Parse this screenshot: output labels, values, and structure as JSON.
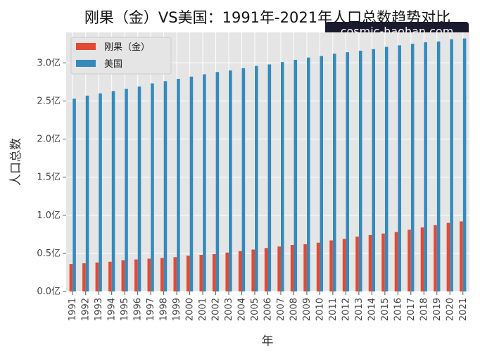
{
  "watermark": "cosmic-haohan.com",
  "colors": {
    "congo": "#E24A33",
    "usa": "#348ABD",
    "plot_bg": "#E5E5E5",
    "grid": "#FFFFFF",
    "watermark_bg": "#1a1a2e"
  },
  "chart_data": {
    "type": "bar",
    "title": "刚果（金）VS美国：1991年-2021年人口总数趋势对比",
    "xlabel": "年",
    "ylabel": "人口总数",
    "ylim": [
      0,
      3.4
    ],
    "yticks": [
      0.0,
      0.5,
      1.0,
      1.5,
      2.0,
      2.5,
      3.0
    ],
    "ytick_labels": [
      "0.0亿",
      "0.5亿",
      "1.0亿",
      "1.5亿",
      "2.0亿",
      "2.5亿",
      "3.0亿"
    ],
    "grid": true,
    "legend_position": "top-left",
    "categories": [
      "1991",
      "1992",
      "1993",
      "1994",
      "1995",
      "1996",
      "1997",
      "1998",
      "1999",
      "2000",
      "2001",
      "2002",
      "2003",
      "2004",
      "2005",
      "2006",
      "2007",
      "2008",
      "2009",
      "2010",
      "2011",
      "2012",
      "2013",
      "2014",
      "2015",
      "2016",
      "2017",
      "2018",
      "2019",
      "2020",
      "2021"
    ],
    "series": [
      {
        "name": "刚果（金）",
        "color": "#E24A33",
        "values": [
          0.36,
          0.37,
          0.38,
          0.39,
          0.41,
          0.42,
          0.43,
          0.44,
          0.45,
          0.47,
          0.48,
          0.49,
          0.51,
          0.53,
          0.55,
          0.57,
          0.59,
          0.61,
          0.62,
          0.64,
          0.67,
          0.69,
          0.72,
          0.74,
          0.76,
          0.78,
          0.81,
          0.84,
          0.87,
          0.9,
          0.92
        ]
      },
      {
        "name": "美国",
        "color": "#348ABD",
        "values": [
          2.53,
          2.57,
          2.6,
          2.63,
          2.66,
          2.69,
          2.73,
          2.76,
          2.79,
          2.82,
          2.85,
          2.88,
          2.9,
          2.93,
          2.96,
          2.98,
          3.01,
          3.04,
          3.07,
          3.09,
          3.12,
          3.14,
          3.16,
          3.18,
          3.21,
          3.23,
          3.25,
          3.27,
          3.28,
          3.31,
          3.32
        ]
      }
    ]
  }
}
